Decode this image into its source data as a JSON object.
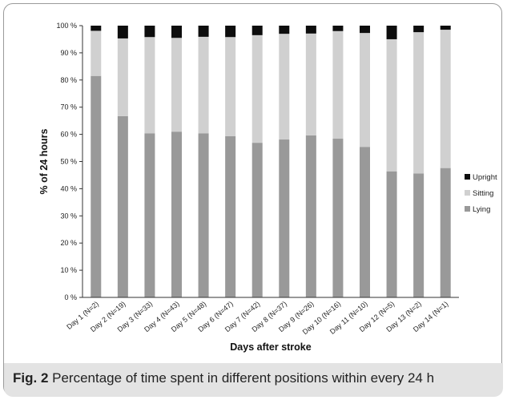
{
  "chart_data": {
    "type": "bar",
    "stacked": true,
    "categories": [
      "Day 1 (N=2)",
      "Day 2 (N=19)",
      "Day 3 (N=33)",
      "Day 4 (N=43)",
      "Day 5 (N=48)",
      "Day 6 (N=47)",
      "Day 7 (N=42)",
      "Day 8 (N=37)",
      "Day 9 (N=26)",
      "Day 10 (N=16)",
      "Day 11 (N=10)",
      "Day 12 (N=5)",
      "Day 13 (N=2)",
      "Day 14 (N=1)"
    ],
    "series": [
      {
        "name": "Lying",
        "color": "#999999",
        "values": [
          81.5,
          66.7,
          60.4,
          61.0,
          60.4,
          59.3,
          56.9,
          58.1,
          59.6,
          58.4,
          55.4,
          46.4,
          45.6,
          47.6
        ]
      },
      {
        "name": "Sitting",
        "color": "#d0d0d0",
        "values": [
          16.6,
          28.6,
          35.4,
          34.5,
          35.5,
          36.5,
          39.6,
          38.9,
          37.5,
          39.6,
          41.9,
          48.6,
          52.0,
          50.9
        ]
      },
      {
        "name": "Upright",
        "color": "#0d0d0d",
        "values": [
          1.9,
          4.7,
          4.2,
          4.5,
          4.1,
          4.2,
          3.5,
          3.0,
          2.9,
          2.0,
          2.7,
          5.0,
          2.4,
          1.5
        ]
      }
    ],
    "legend_order": [
      "Upright",
      "Sitting",
      "Lying"
    ],
    "yticks": [
      "0 %",
      "10 %",
      "20 %",
      "30 %",
      "40 %",
      "50 %",
      "60 %",
      "70 %",
      "80 %",
      "90 %",
      "100 %"
    ],
    "ylim": [
      0,
      100
    ],
    "xlabel": "Days after stroke",
    "ylabel": "% of 24 hours",
    "legend_position": "right",
    "grid": false
  },
  "caption": {
    "label": "Fig. 2",
    "text": "Percentage of time spent in different positions within every 24 h"
  }
}
